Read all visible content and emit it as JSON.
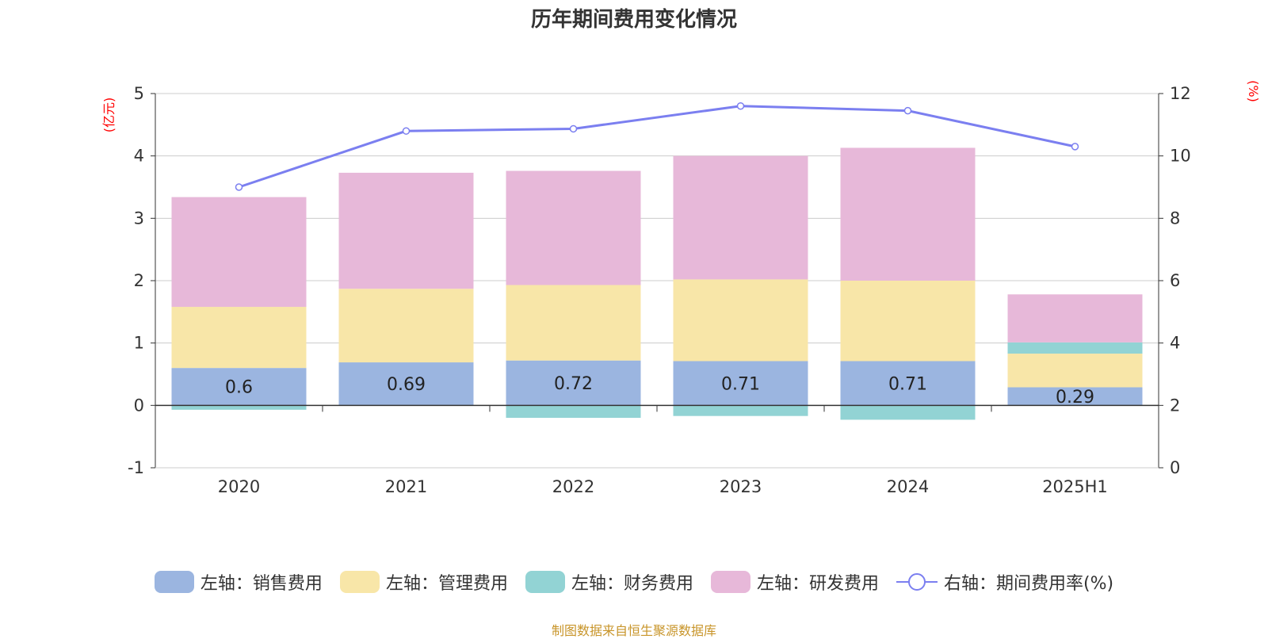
{
  "title": "历年期间费用变化情况",
  "source_note": "制图数据来自恒生聚源数据库",
  "colors": {
    "sales": "#9bb5e0",
    "admin": "#f8e6a8",
    "finance": "#92d3d4",
    "rnd": "#e7b8d9",
    "rate": "#7b7ff0",
    "axis_unit": "#ff0000"
  },
  "chart_data": {
    "type": "bar",
    "stacked": true,
    "categories": [
      "2020",
      "2021",
      "2022",
      "2023",
      "2024",
      "2025H1"
    ],
    "left_axis": {
      "label": "(亿元)",
      "ylim": [
        -1,
        5
      ],
      "ticks": [
        "-1",
        "0",
        "1",
        "2",
        "3",
        "4",
        "5"
      ]
    },
    "right_axis": {
      "label": "(%)",
      "ylim": [
        0,
        12
      ],
      "ticks": [
        "0",
        "2",
        "4",
        "6",
        "8",
        "10",
        "12"
      ]
    },
    "series": [
      {
        "name": "左轴：销售费用",
        "key": "sales",
        "axis": "left",
        "type": "bar",
        "values": [
          0.6,
          0.69,
          0.72,
          0.71,
          0.71,
          0.29
        ],
        "show_labels": true
      },
      {
        "name": "左轴：管理费用",
        "key": "admin",
        "axis": "left",
        "type": "bar",
        "values": [
          0.98,
          1.18,
          1.21,
          1.31,
          1.29,
          0.54
        ]
      },
      {
        "name": "左轴：财务费用",
        "key": "finance",
        "axis": "left",
        "type": "bar",
        "values": [
          -0.07,
          0.0,
          -0.2,
          -0.17,
          -0.23,
          0.18
        ]
      },
      {
        "name": "左轴：研发费用",
        "key": "rnd",
        "axis": "left",
        "type": "bar",
        "values": [
          1.76,
          1.86,
          1.83,
          1.98,
          2.13,
          0.77
        ]
      },
      {
        "name": "右轴：期间费用率(%)",
        "key": "rate",
        "axis": "right",
        "type": "line",
        "values": [
          9.0,
          10.8,
          10.87,
          11.6,
          11.45,
          10.3
        ]
      }
    ],
    "grid": true,
    "legend_position": "bottom"
  }
}
